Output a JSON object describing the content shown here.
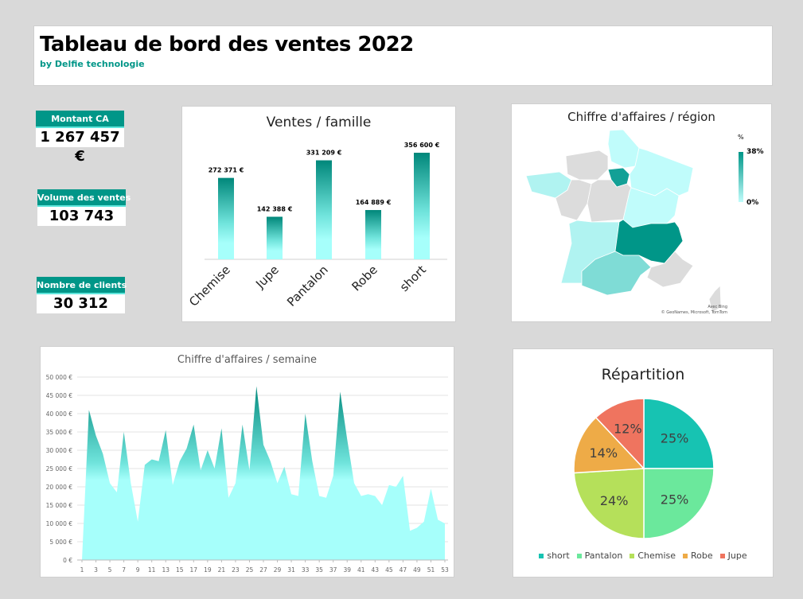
{
  "header": {
    "title": "Tableau de bord des ventes 2022",
    "subtitle": "by Delfie technologie"
  },
  "kpis": [
    {
      "label": "Montant CA",
      "value": "1 267 457 €"
    },
    {
      "label": "Volume des ventes",
      "value": "103 743"
    },
    {
      "label": "Nombre de clients",
      "value": "30 312"
    }
  ],
  "colors": {
    "accent": "#009688",
    "light": "#a6fffb"
  },
  "map": {
    "title": "Chiffre d'affaires / région",
    "legend_title": "%",
    "legend_max": "38%",
    "legend_min": "0%",
    "credit1": "Avec Bing",
    "credit2": "© GeoNames, Microsoft, TomTom"
  },
  "chart_data": [
    {
      "type": "bar",
      "title": "Ventes / famille",
      "categories": [
        "Chemise",
        "Jupe",
        "Pantalon",
        "Robe",
        "short"
      ],
      "values": [
        272371,
        142388,
        331209,
        164889,
        356600
      ],
      "labels": [
        "272 371 €",
        "142 388 €",
        "331 209 €",
        "164 889 €",
        "356 600 €"
      ],
      "ylim": [
        0,
        356600
      ]
    },
    {
      "type": "area",
      "title": "Chiffre d'affaires / semaine",
      "x": [
        1,
        2,
        3,
        4,
        5,
        6,
        7,
        8,
        9,
        10,
        11,
        12,
        13,
        14,
        15,
        16,
        17,
        18,
        19,
        20,
        21,
        22,
        23,
        24,
        25,
        26,
        27,
        28,
        29,
        30,
        31,
        32,
        33,
        34,
        35,
        36,
        37,
        38,
        39,
        40,
        41,
        42,
        43,
        44,
        45,
        46,
        47,
        48,
        49,
        50,
        51,
        52,
        53
      ],
      "values": [
        0,
        41000,
        34000,
        29000,
        21000,
        18500,
        35000,
        21000,
        10500,
        26000,
        27500,
        27000,
        35500,
        20500,
        27000,
        30500,
        37000,
        24500,
        30000,
        25000,
        36000,
        17000,
        21000,
        37000,
        24500,
        47500,
        31500,
        27000,
        21000,
        25500,
        18000,
        17500,
        40000,
        27000,
        17500,
        17000,
        23000,
        46000,
        33000,
        21000,
        17500,
        18000,
        17500,
        15000,
        20500,
        20000,
        23000,
        8000,
        8800,
        10500,
        19500,
        11000,
        10000
      ],
      "ylim": [
        0,
        50000
      ],
      "yticks": [
        "0 €",
        "5 000 €",
        "10 000 €",
        "15 000 €",
        "20 000 €",
        "25 000 €",
        "30 000 €",
        "35 000 €",
        "40 000 €",
        "45 000 €",
        "50 000 €"
      ],
      "xticks": [
        "1",
        "3",
        "5",
        "7",
        "9",
        "11",
        "13",
        "15",
        "17",
        "19",
        "21",
        "23",
        "25",
        "27",
        "29",
        "31",
        "33",
        "35",
        "37",
        "39",
        "41",
        "43",
        "45",
        "47",
        "49",
        "51",
        "53"
      ],
      "grid": true
    },
    {
      "type": "pie",
      "title": "Répartition",
      "categories": [
        "short",
        "Pantalon",
        "Chemise",
        "Robe",
        "Jupe"
      ],
      "values": [
        25,
        25,
        24,
        14,
        12
      ],
      "labels": [
        "25%",
        "25%",
        "24%",
        "14%",
        "12%"
      ],
      "colors": [
        "#17c3b2",
        "#6be89c",
        "#b5e05a",
        "#eeab47",
        "#ef745f"
      ],
      "legend": "bottom"
    }
  ]
}
